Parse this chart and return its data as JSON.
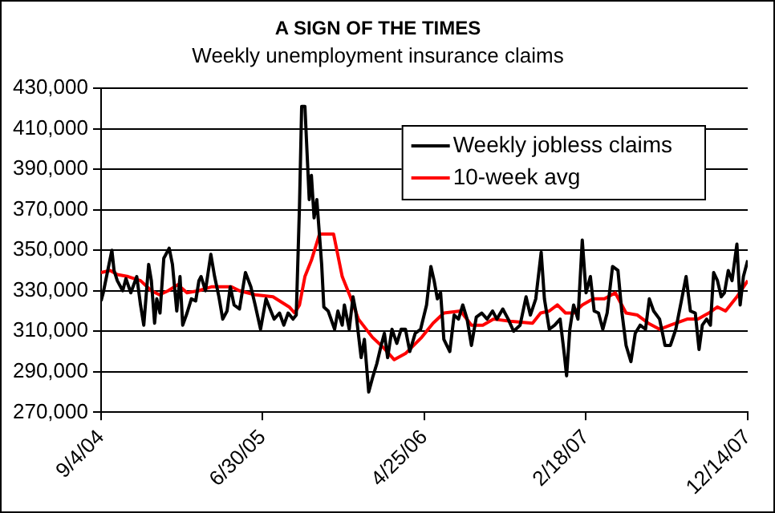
{
  "chart_data": {
    "type": "line",
    "title": "A SIGN OF THE TIMES",
    "subtitle": "Weekly unemployment insurance claims",
    "xlim": [
      "2004-09-04",
      "2007-12-14"
    ],
    "xticks": [
      {
        "value": "2004-09-04",
        "label": "9/4/04"
      },
      {
        "value": "2005-06-30",
        "label": "6/30/05"
      },
      {
        "value": "2006-04-25",
        "label": "4/25/06"
      },
      {
        "value": "2007-02-18",
        "label": "2/18/07"
      },
      {
        "value": "2007-12-14",
        "label": "12/14/07"
      }
    ],
    "ylim": [
      270000,
      430000
    ],
    "yticks": [
      {
        "value": 270000,
        "label": "270,000"
      },
      {
        "value": 290000,
        "label": "290,000"
      },
      {
        "value": 310000,
        "label": "310,000"
      },
      {
        "value": 330000,
        "label": "330,000"
      },
      {
        "value": 350000,
        "label": "350,000"
      },
      {
        "value": 370000,
        "label": "370,000"
      },
      {
        "value": 390000,
        "label": "390,000"
      },
      {
        "value": 410000,
        "label": "410,000"
      },
      {
        "value": 430000,
        "label": "430,000"
      }
    ],
    "grid": "y",
    "legend": "top right",
    "marker": "none",
    "line_style": "solid",
    "series": [
      {
        "name": "Weekly jobless claims",
        "color": "#000000",
        "x": [
          "2004-09-04",
          "2004-09-08",
          "2004-09-24",
          "2004-09-28",
          "2004-10-04",
          "2004-10-14",
          "2004-10-20",
          "2004-10-29",
          "2004-11-09",
          "2004-11-16",
          "2004-11-22",
          "2004-12-01",
          "2004-12-06",
          "2004-12-12",
          "2004-12-16",
          "2004-12-22",
          "2004-12-29",
          "2005-01-08",
          "2005-01-14",
          "2005-01-22",
          "2005-01-28",
          "2005-02-02",
          "2005-02-10",
          "2005-02-18",
          "2005-02-26",
          "2005-03-04",
          "2005-03-08",
          "2005-03-16",
          "2005-03-26",
          "2005-04-02",
          "2005-04-10",
          "2005-04-17",
          "2005-04-25",
          "2005-05-01",
          "2005-05-08",
          "2005-05-18",
          "2005-05-29",
          "2005-06-08",
          "2005-06-16",
          "2005-06-26",
          "2005-07-06",
          "2005-07-21",
          "2005-07-31",
          "2005-08-08",
          "2005-08-16",
          "2005-08-25",
          "2005-08-31",
          "2005-09-06",
          "2005-09-10",
          "2005-09-16",
          "2005-09-20",
          "2005-09-24",
          "2005-09-28",
          "2005-10-03",
          "2005-10-08",
          "2005-10-17",
          "2005-10-21",
          "2005-10-29",
          "2005-11-10",
          "2005-11-16",
          "2005-11-24",
          "2005-11-28",
          "2005-12-07",
          "2005-12-14",
          "2005-12-19",
          "2005-12-29",
          "2006-01-04",
          "2006-01-12",
          "2006-01-19",
          "2006-01-27",
          "2006-02-04",
          "2006-02-10",
          "2006-02-16",
          "2006-02-24",
          "2006-03-05",
          "2006-03-13",
          "2006-03-21",
          "2006-03-29",
          "2006-04-08",
          "2006-04-18",
          "2006-04-29",
          "2006-05-07",
          "2006-05-13",
          "2006-05-19",
          "2006-05-25",
          "2006-05-31",
          "2006-06-11",
          "2006-06-19",
          "2006-06-27",
          "2006-07-05",
          "2006-07-13",
          "2006-07-21",
          "2006-07-30",
          "2006-08-09",
          "2006-08-19",
          "2006-08-29",
          "2006-09-06",
          "2006-09-17",
          "2006-09-27",
          "2006-10-07",
          "2006-10-19",
          "2006-10-30",
          "2006-11-07",
          "2006-11-17",
          "2006-11-27",
          "2006-12-03",
          "2006-12-12",
          "2006-12-22",
          "2007-01-01",
          "2007-01-09",
          "2007-01-13",
          "2007-01-19",
          "2007-01-26",
          "2007-02-03",
          "2007-02-11",
          "2007-02-18",
          "2007-02-26",
          "2007-03-05",
          "2007-03-13",
          "2007-03-21",
          "2007-03-29",
          "2007-04-08",
          "2007-04-18",
          "2007-04-25",
          "2007-05-03",
          "2007-05-12",
          "2007-05-20",
          "2007-05-29",
          "2007-06-08",
          "2007-06-15",
          "2007-06-23",
          "2007-07-04",
          "2007-07-14",
          "2007-07-24",
          "2007-08-03",
          "2007-08-14",
          "2007-08-22",
          "2007-08-30",
          "2007-09-08",
          "2007-09-15",
          "2007-09-21",
          "2007-09-29",
          "2007-10-06",
          "2007-10-12",
          "2007-10-19",
          "2007-10-26",
          "2007-11-01",
          "2007-11-08",
          "2007-11-15",
          "2007-11-24",
          "2007-11-30",
          "2007-12-06",
          "2007-12-14"
        ],
        "values": [
          325000,
          329000,
          350000,
          340000,
          335000,
          330000,
          336000,
          329000,
          337000,
          323000,
          313000,
          343000,
          335000,
          314000,
          326000,
          319000,
          346000,
          351000,
          343000,
          320000,
          337000,
          313000,
          319000,
          326000,
          325000,
          335000,
          337000,
          330000,
          348000,
          337000,
          327000,
          316000,
          320000,
          332000,
          323000,
          321000,
          339000,
          332000,
          323000,
          311000,
          326000,
          316000,
          319000,
          313000,
          319000,
          316000,
          318000,
          372000,
          421000,
          421000,
          398000,
          375000,
          387000,
          366000,
          375000,
          343000,
          322000,
          320000,
          311000,
          320000,
          313000,
          323000,
          311000,
          327000,
          320000,
          297000,
          306000,
          280000,
          287000,
          294000,
          303000,
          309000,
          297000,
          311000,
          304000,
          311000,
          311000,
          300000,
          309000,
          311000,
          323000,
          342000,
          335000,
          326000,
          329000,
          306000,
          300000,
          318000,
          316000,
          323000,
          316000,
          303000,
          317000,
          319000,
          316000,
          320000,
          316000,
          321000,
          316000,
          310000,
          313000,
          327000,
          318000,
          326000,
          349000,
          326000,
          311000,
          313000,
          316000,
          298000,
          288000,
          311000,
          323000,
          316000,
          355000,
          329000,
          337000,
          320000,
          319000,
          311000,
          319000,
          342000,
          340000,
          320000,
          303000,
          295000,
          309000,
          313000,
          311000,
          326000,
          320000,
          316000,
          303000,
          303000,
          311000,
          326000,
          337000,
          320000,
          319000,
          301000,
          313000,
          316000,
          313000,
          339000,
          335000,
          327000,
          329000,
          340000,
          335000,
          353000,
          323000,
          337000,
          345000
        ]
      },
      {
        "name": "10-week avg",
        "color": "#ff0000",
        "x": [
          "2004-09-04",
          "2004-09-21",
          "2004-10-04",
          "2004-10-24",
          "2004-11-16",
          "2004-12-06",
          "2004-12-21",
          "2005-01-06",
          "2005-01-24",
          "2005-02-10",
          "2005-03-03",
          "2005-03-28",
          "2005-05-03",
          "2005-05-18",
          "2005-06-16",
          "2005-07-19",
          "2005-08-18",
          "2005-08-28",
          "2005-09-06",
          "2005-09-16",
          "2005-09-28",
          "2005-10-13",
          "2005-11-08",
          "2005-11-24",
          "2005-12-09",
          "2005-12-24",
          "2006-01-19",
          "2006-02-08",
          "2006-02-28",
          "2006-03-21",
          "2006-04-20",
          "2006-05-11",
          "2006-05-31",
          "2006-07-01",
          "2006-07-21",
          "2006-08-11",
          "2006-08-31",
          "2006-10-01",
          "2006-11-11",
          "2006-11-26",
          "2006-12-12",
          "2006-12-27",
          "2007-01-11",
          "2007-01-26",
          "2007-02-11",
          "2007-03-03",
          "2007-03-24",
          "2007-04-13",
          "2007-05-03",
          "2007-05-24",
          "2007-06-13",
          "2007-07-04",
          "2007-07-24",
          "2007-08-24",
          "2007-09-13",
          "2007-10-03",
          "2007-10-19",
          "2007-11-03",
          "2007-11-24",
          "2007-12-14"
        ],
        "values": [
          339000,
          340000,
          338000,
          337000,
          335000,
          330000,
          328000,
          330000,
          333000,
          329000,
          330000,
          332000,
          332000,
          330000,
          328000,
          327000,
          322000,
          319000,
          323000,
          337000,
          345000,
          358000,
          358000,
          337000,
          327000,
          316000,
          307000,
          302000,
          296000,
          299000,
          307000,
          314000,
          319000,
          320000,
          313000,
          313000,
          316000,
          315000,
          314000,
          319000,
          320000,
          323000,
          319000,
          319000,
          323000,
          326000,
          326000,
          329000,
          319000,
          318000,
          314000,
          311000,
          313000,
          316000,
          316000,
          319000,
          322000,
          320000,
          327000,
          335000
        ]
      }
    ]
  }
}
